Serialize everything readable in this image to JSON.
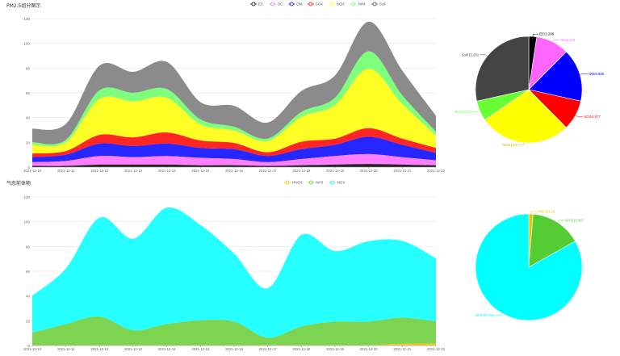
{
  "top_panel": {
    "title": "PM2.5组分图示",
    "legend": [
      {
        "label": "EC",
        "color": "#000000"
      },
      {
        "label": "OC",
        "color": "#ff66ff"
      },
      {
        "label": "OM",
        "color": "#0000ff"
      },
      {
        "label": "SO4",
        "color": "#ff0000"
      },
      {
        "label": "NO3",
        "color": "#ffff00"
      },
      {
        "label": "NH4",
        "color": "#66ff66"
      },
      {
        "label": "Soil",
        "color": "#444444"
      }
    ]
  },
  "bottom_panel": {
    "title": "气态前体物",
    "legend": [
      {
        "label": "HNO3",
        "color": "#f0c000"
      },
      {
        "label": "NH3",
        "color": "#66cc33"
      },
      {
        "label": "NOX",
        "color": "#00ffff"
      }
    ]
  },
  "chart_data": [
    {
      "type": "area",
      "stacked": true,
      "title": "PM2.5组分图示",
      "x": [
        "2021-12-10",
        "2021-12-11",
        "2021-12-12",
        "2021-12-13",
        "2021-12-14",
        "2021-12-15",
        "2021-12-16",
        "2021-12-17",
        "2021-12-18",
        "2021-12-19",
        "2021-12-20",
        "2021-12-21",
        "2021-12-22"
      ],
      "ylim": [
        0,
        120
      ],
      "yticks": [
        0,
        20,
        40,
        60,
        80,
        100,
        120
      ],
      "grid": true,
      "legend_position": "top-right",
      "series": [
        {
          "name": "EC",
          "color": "#000000",
          "values": [
            1,
            1,
            2,
            2,
            2,
            1.5,
            1.5,
            1,
            1.5,
            2,
            2.5,
            2,
            1.5
          ]
        },
        {
          "name": "OC",
          "color": "#ff66ff",
          "values": [
            3,
            4,
            7,
            6,
            7,
            6,
            5,
            3,
            5,
            7,
            8,
            6,
            4
          ]
        },
        {
          "name": "OM",
          "color": "#0000ff",
          "values": [
            4,
            5,
            10,
            9,
            10,
            8,
            8,
            5,
            8,
            9,
            14,
            10,
            6
          ]
        },
        {
          "name": "SO4",
          "color": "#ff0000",
          "values": [
            3,
            3,
            7,
            7,
            9,
            6,
            5,
            3,
            6,
            5,
            7,
            5,
            4
          ]
        },
        {
          "name": "NO3",
          "color": "#ffff00",
          "values": [
            7,
            7,
            29,
            29,
            28,
            13,
            10,
            9,
            20,
            27,
            48,
            28,
            10
          ]
        },
        {
          "name": "NH4",
          "color": "#66ff66",
          "values": [
            2,
            2,
            7,
            7,
            7,
            4,
            3,
            2,
            4,
            6,
            14,
            7,
            3
          ]
        },
        {
          "name": "Soil",
          "color": "#777777",
          "values": [
            11,
            13,
            20,
            17,
            22,
            14,
            17,
            13,
            17,
            18,
            24,
            20,
            13
          ]
        }
      ]
    },
    {
      "type": "pie",
      "title": "",
      "slices": [
        {
          "label": "EC",
          "value": 1.286,
          "display": "EC/1.286",
          "color": "#000000"
        },
        {
          "label": "OC",
          "value": 5.373,
          "display": "OC/5.373",
          "color": "#ff66ff"
        },
        {
          "label": "OM",
          "value": 8.599,
          "display": "OM/8.599",
          "color": "#0000ff"
        },
        {
          "label": "SO4",
          "value": 4.877,
          "display": "SO4/4.877",
          "color": "#ff0000"
        },
        {
          "label": "NO3",
          "value": 14.9,
          "display": "NO3/14.9",
          "color": "#ffff00"
        },
        {
          "label": "NH4",
          "value": 3.272,
          "display": "NH4/3.272",
          "color": "#66ff33"
        },
        {
          "label": "Soil",
          "value": 15.261,
          "display": "Soil/15.261",
          "color": "#444444"
        }
      ]
    },
    {
      "type": "area",
      "stacked": true,
      "title": "气态前体物",
      "x": [
        "2021-12-10",
        "2021-12-11",
        "2021-12-12",
        "2021-12-13",
        "2021-12-14",
        "2021-12-15",
        "2021-12-16",
        "2021-12-17",
        "2021-12-18",
        "2021-12-19",
        "2021-12-20",
        "2021-12-21",
        "2021-12-22"
      ],
      "ylim": [
        0,
        120
      ],
      "yticks": [
        0,
        20,
        40,
        60,
        80,
        100,
        120
      ],
      "grid": true,
      "legend_position": "top-right",
      "series": [
        {
          "name": "HNO3",
          "color": "#f0c000",
          "values": [
            0.3,
            0.3,
            0.3,
            0.3,
            0.3,
            0.3,
            0.3,
            0.3,
            0.3,
            0.3,
            0.3,
            1.5,
            1.5
          ]
        },
        {
          "name": "NH3",
          "color": "#66cc33",
          "values": [
            10,
            17,
            23,
            12,
            17,
            20,
            19,
            6,
            15,
            19,
            19,
            21,
            18
          ]
        },
        {
          "name": "NOX",
          "color": "#00ffff",
          "values": [
            30,
            45,
            80,
            74,
            94,
            77,
            55,
            40,
            74,
            57,
            65,
            62,
            51
          ]
        }
      ]
    },
    {
      "type": "pie",
      "title": "",
      "slices": [
        {
          "label": "HNO3",
          "value": 1.24,
          "display": "HNO3/1.24",
          "color": "#f0c000"
        },
        {
          "label": "NH3",
          "value": 15.067,
          "display": "NH3/15.067",
          "color": "#55cc33"
        },
        {
          "label": "NOX",
          "value": 80.295,
          "display": "NOX/80.295",
          "color": "#00ffff"
        }
      ]
    }
  ]
}
